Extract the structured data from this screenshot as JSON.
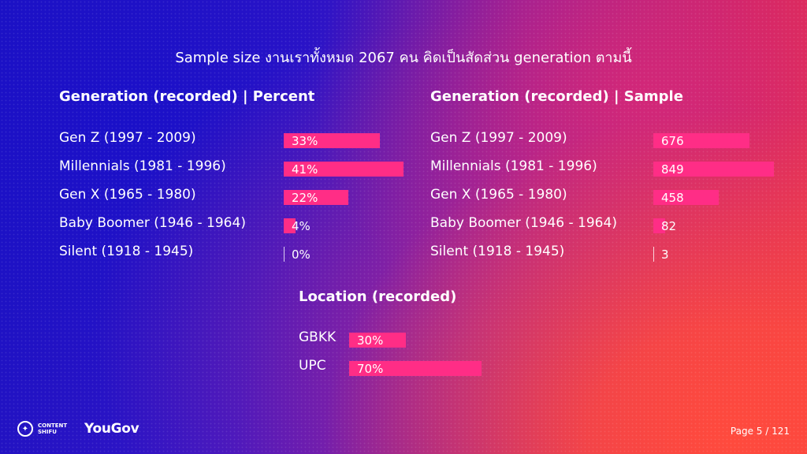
{
  "title": "Sample size งานเราทั้งหมด 2067 คน คิดเป็นสัดส่วน generation ตามนี้",
  "colors": {
    "bar": "#ff2d86"
  },
  "chart_data": [
    {
      "type": "bar",
      "orientation": "horizontal",
      "title": "Generation (recorded) | Percent",
      "categories": [
        "Gen Z (1997 - 2009)",
        "Millennials (1981 - 1996)",
        "Gen X (1965 - 1980)",
        "Baby Boomer (1946 - 1964)",
        "Silent (1918 - 1945)"
      ],
      "values": [
        33,
        41,
        22,
        4,
        0
      ],
      "labels": [
        "33%",
        "41%",
        "22%",
        "4%",
        "0%"
      ]
    },
    {
      "type": "bar",
      "orientation": "horizontal",
      "title": "Generation (recorded) | Sample",
      "categories": [
        "Gen Z (1997 - 2009)",
        "Millennials (1981 - 1996)",
        "Gen X (1965 - 1980)",
        "Baby Boomer (1946 - 1964)",
        "Silent (1918 - 1945)"
      ],
      "values": [
        676,
        849,
        458,
        82,
        3
      ],
      "labels": [
        "676",
        "849",
        "458",
        "82",
        "3"
      ]
    },
    {
      "type": "bar",
      "orientation": "horizontal",
      "title": "Location (recorded)",
      "categories": [
        "GBKK",
        "UPC"
      ],
      "values": [
        30,
        70
      ],
      "labels": [
        "30%",
        "70%"
      ]
    }
  ],
  "footer": {
    "brand_small_1": "CONTENT",
    "brand_small_2": "SHIFU",
    "brand_main": "YouGov",
    "page": "Page 5 / 121"
  }
}
